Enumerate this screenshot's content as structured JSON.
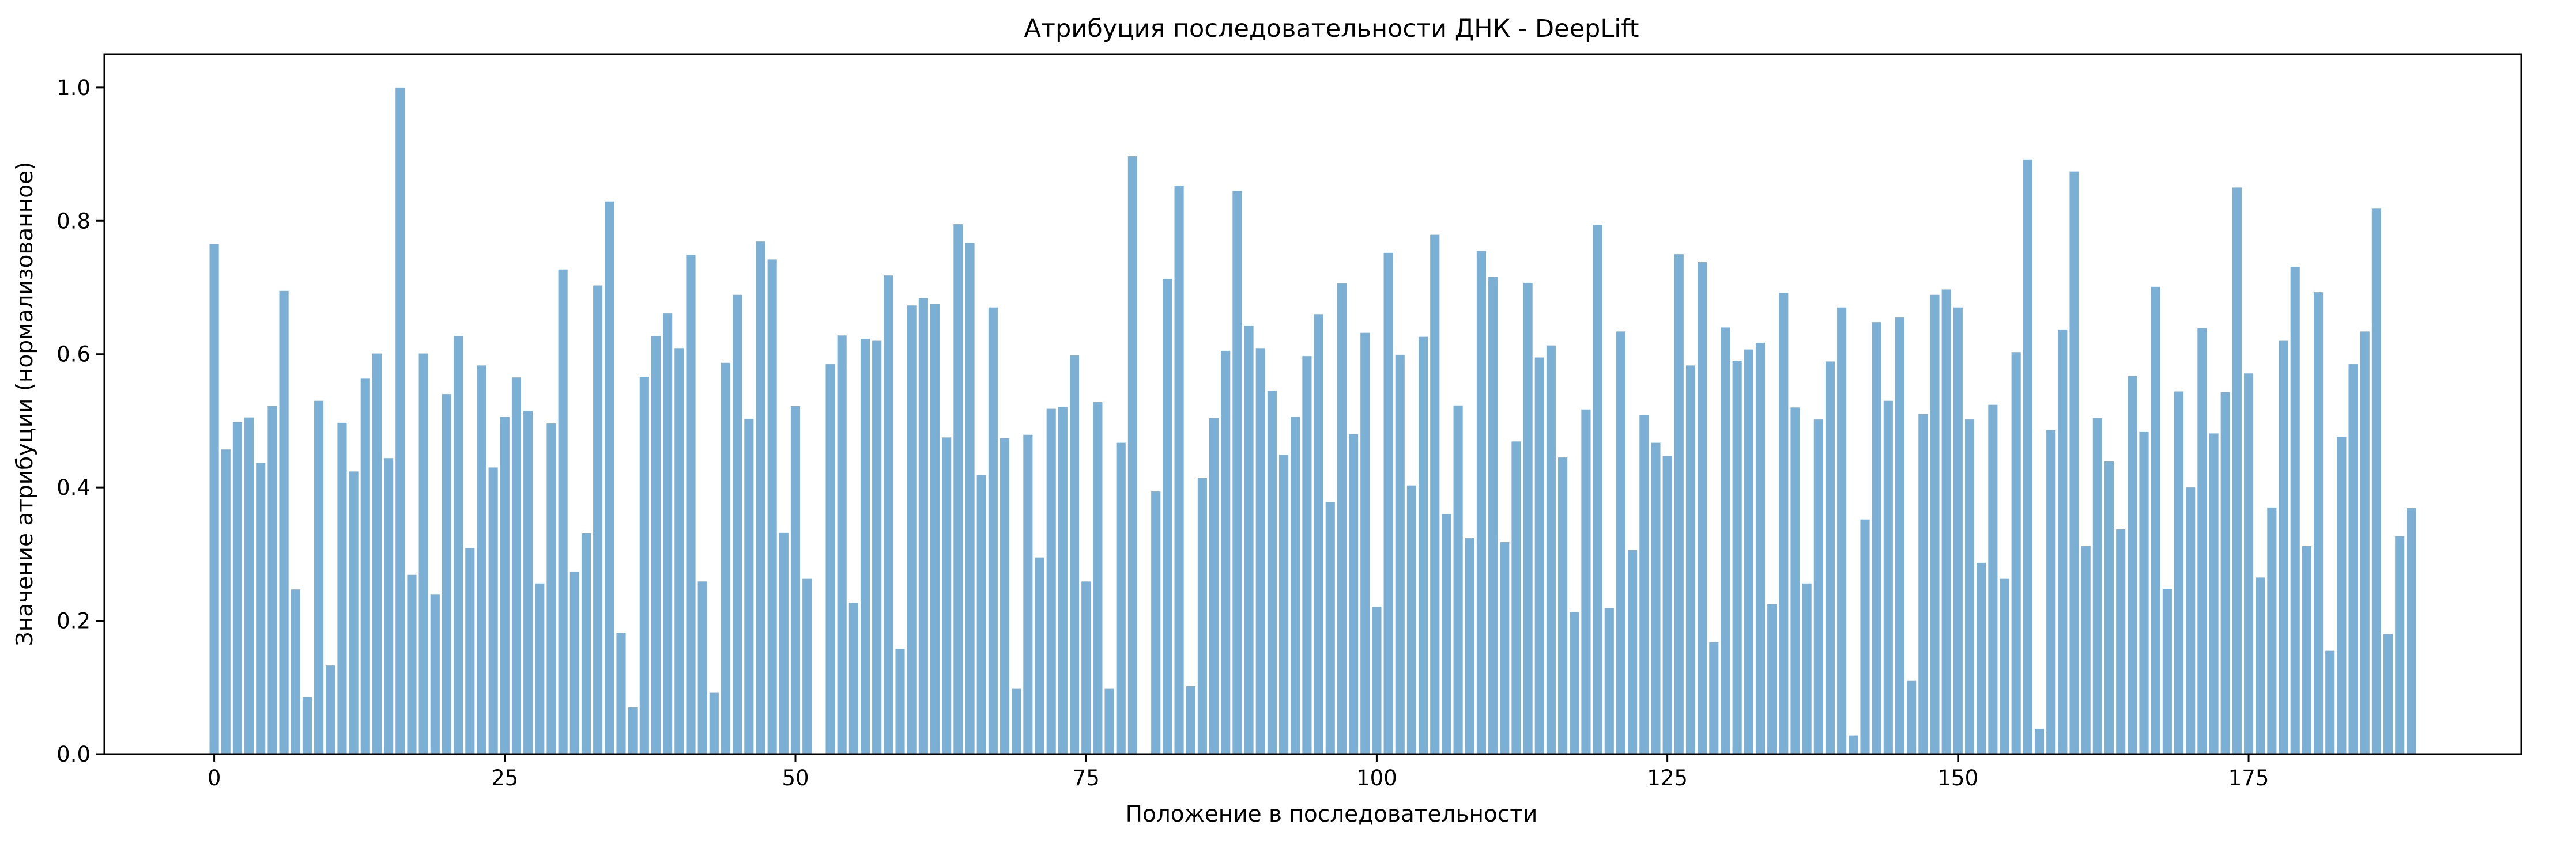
{
  "chart_data": {
    "type": "bar",
    "title": "Атрибуция последовательности ДНК - DeepLift",
    "xlabel": "Положение в последовательности",
    "ylabel": "Значение атрибуции (нормализованное)",
    "x": [
      0,
      1,
      2,
      3,
      4,
      5,
      6,
      7,
      8,
      9,
      10,
      11,
      12,
      13,
      14,
      15,
      16,
      17,
      18,
      19,
      20,
      21,
      22,
      23,
      24,
      25,
      26,
      27,
      28,
      29,
      30,
      31,
      32,
      33,
      34,
      35,
      36,
      37,
      38,
      39,
      40,
      41,
      42,
      43,
      44,
      45,
      46,
      47,
      48,
      49,
      50,
      51,
      52,
      53,
      54,
      55,
      56,
      57,
      58,
      59,
      60,
      61,
      62,
      63,
      64,
      65,
      66,
      67,
      68,
      69,
      70,
      71,
      72,
      73,
      74,
      75,
      76,
      77,
      78,
      79,
      80,
      81,
      82,
      83,
      84,
      85,
      86,
      87,
      88,
      89,
      90,
      91,
      92,
      93,
      94,
      95,
      96,
      97,
      98,
      99,
      100,
      101,
      102,
      103,
      104,
      105,
      106,
      107,
      108,
      109,
      110,
      111,
      112,
      113,
      114,
      115,
      116,
      117,
      118,
      119,
      120,
      121,
      122,
      123,
      124,
      125,
      126,
      127,
      128,
      129,
      130,
      131,
      132,
      133,
      134,
      135,
      136,
      137,
      138,
      139,
      140,
      141,
      142,
      143,
      144,
      145,
      146,
      147,
      148,
      149,
      150,
      151,
      152,
      153,
      154,
      155,
      156,
      157,
      158,
      159,
      160,
      161,
      162,
      163,
      164,
      165,
      166,
      167,
      168,
      169,
      170,
      171,
      172,
      173,
      174,
      175,
      176,
      177,
      178,
      179,
      180,
      181,
      182,
      183,
      184,
      185,
      186,
      187,
      188,
      189
    ],
    "values": [
      0.765,
      0.457,
      0.498,
      0.505,
      0.437,
      0.522,
      0.695,
      0.247,
      0.086,
      0.53,
      0.133,
      0.497,
      0.424,
      0.564,
      0.601,
      0.444,
      1.0,
      0.269,
      0.601,
      0.24,
      0.54,
      0.627,
      0.309,
      0.583,
      0.43,
      0.506,
      0.565,
      0.515,
      0.256,
      0.496,
      0.727,
      0.274,
      0.331,
      0.703,
      0.829,
      0.182,
      0.07,
      0.566,
      0.627,
      0.661,
      0.609,
      0.749,
      0.259,
      0.092,
      0.587,
      0.689,
      0.503,
      0.769,
      0.742,
      0.332,
      0.522,
      0.263,
      0.0,
      0.585,
      0.628,
      0.227,
      0.623,
      0.62,
      0.718,
      0.158,
      0.673,
      0.684,
      0.675,
      0.475,
      0.795,
      0.767,
      0.419,
      0.67,
      0.474,
      0.098,
      0.479,
      0.295,
      0.518,
      0.521,
      0.598,
      0.259,
      0.528,
      0.098,
      0.467,
      0.897,
      0.0,
      0.394,
      0.713,
      0.853,
      0.102,
      0.414,
      0.504,
      0.605,
      0.845,
      0.643,
      0.609,
      0.545,
      0.449,
      0.506,
      0.597,
      0.66,
      0.378,
      0.706,
      0.48,
      0.632,
      0.221,
      0.752,
      0.599,
      0.403,
      0.626,
      0.779,
      0.36,
      0.523,
      0.324,
      0.755,
      0.716,
      0.318,
      0.469,
      0.707,
      0.595,
      0.613,
      0.445,
      0.213,
      0.517,
      0.794,
      0.219,
      0.634,
      0.306,
      0.509,
      0.467,
      0.447,
      0.75,
      0.583,
      0.738,
      0.168,
      0.64,
      0.59,
      0.607,
      0.617,
      0.225,
      0.692,
      0.52,
      0.256,
      0.502,
      0.589,
      0.67,
      0.028,
      0.352,
      0.648,
      0.53,
      0.655,
      0.11,
      0.51,
      0.689,
      0.697,
      0.67,
      0.502,
      0.287,
      0.524,
      0.263,
      0.603,
      0.892,
      0.038,
      0.486,
      0.637,
      0.874,
      0.312,
      0.504,
      0.439,
      0.337,
      0.567,
      0.484,
      0.701,
      0.248,
      0.544,
      0.4,
      0.639,
      0.481,
      0.543,
      0.85,
      0.571,
      0.265,
      0.37,
      0.62,
      0.731,
      0.312,
      0.693,
      0.155,
      0.476,
      0.585,
      0.634,
      0.819,
      0.18,
      0.327,
      0.369
    ],
    "xticks": [
      0,
      25,
      50,
      75,
      100,
      125,
      150,
      175
    ],
    "yticks": [
      0.0,
      0.2,
      0.4,
      0.6,
      0.8,
      1.0
    ],
    "xtick_labels": [
      "0",
      "25",
      "50",
      "75",
      "100",
      "125",
      "150",
      "175"
    ],
    "ytick_labels": [
      "0.0",
      "0.2",
      "0.4",
      "0.6",
      "0.8",
      "1.0"
    ],
    "xlim": [
      -9.45,
      198.45
    ],
    "ylim": [
      0,
      1.05
    ],
    "grid": false,
    "bar_color": "#7bafd4"
  }
}
